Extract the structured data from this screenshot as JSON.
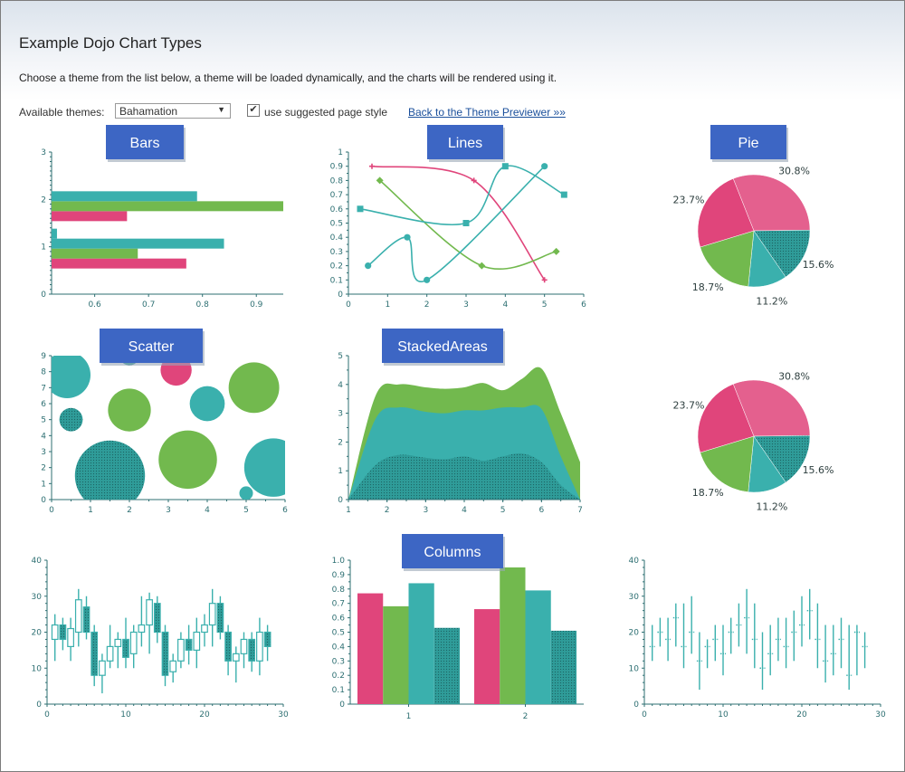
{
  "page": {
    "title": "Example Dojo Chart Types",
    "description": "Choose a theme from the list below, a theme will be loaded dynamically, and the charts will be rendered using it.",
    "themes_label": "Available themes:",
    "theme_selected": "Bahamation",
    "suggested_style_label": "use suggested page style",
    "suggested_style_checked": true,
    "back_link": "Back to the Theme Previewer »»"
  },
  "colors": {
    "pink": "#e0457b",
    "green": "#72b94e",
    "teal": "#3ab0ad",
    "teal_dark": "#2f9c99",
    "axis": "#2d6f72",
    "title_button": "#3d66c4"
  },
  "chart_data": [
    {
      "type": "bar",
      "title": "Bars",
      "orientation": "horizontal",
      "categories": [
        "1",
        "2"
      ],
      "series": [
        {
          "color": "pink",
          "values": [
            0.77,
            0.66
          ]
        },
        {
          "color": "green",
          "values": [
            0.68,
            0.95
          ]
        },
        {
          "color": "teal",
          "values": [
            0.84,
            0.79
          ]
        },
        {
          "color": "teal",
          "values": [
            0.53,
            0.51
          ]
        }
      ],
      "xlim": [
        0.52,
        0.95
      ],
      "ylim": [
        0,
        3
      ],
      "xticks": [
        "0.6",
        "0.7",
        "0.8",
        "0.9"
      ],
      "yticks": [
        "0",
        "1",
        "2",
        "3"
      ]
    },
    {
      "type": "line",
      "title": "Lines",
      "xlim": [
        0,
        6
      ],
      "ylim": [
        0,
        1
      ],
      "xticks": [
        "0",
        "1",
        "2",
        "3",
        "4",
        "5",
        "6"
      ],
      "yticks": [
        "0",
        "0.1",
        "0.2",
        "0.3",
        "0.4",
        "0.5",
        "0.6",
        "0.7",
        "0.8",
        "0.9",
        "1"
      ],
      "series": [
        {
          "color": "pink",
          "marker": "plus",
          "points": [
            [
              0.6,
              0.9
            ],
            [
              3.2,
              0.8
            ],
            [
              5.0,
              0.1
            ]
          ]
        },
        {
          "color": "green",
          "marker": "diamond",
          "points": [
            [
              0.8,
              0.8
            ],
            [
              3.4,
              0.2
            ],
            [
              5.3,
              0.3
            ]
          ]
        },
        {
          "color": "teal",
          "marker": "square",
          "points": [
            [
              0.3,
              0.6
            ],
            [
              3.0,
              0.5
            ],
            [
              4.0,
              0.9
            ],
            [
              5.5,
              0.7
            ]
          ]
        },
        {
          "color": "teal",
          "marker": "circle",
          "points": [
            [
              0.5,
              0.2
            ],
            [
              1.5,
              0.4
            ],
            [
              2.0,
              0.1
            ],
            [
              5.0,
              0.9
            ]
          ]
        }
      ]
    },
    {
      "type": "pie",
      "title": "Pie",
      "slices": [
        {
          "label": "30.8%",
          "value": 30.8,
          "color": "pink"
        },
        {
          "label": "15.6%",
          "value": 15.6,
          "color": "teal_dark"
        },
        {
          "label": "11.2%",
          "value": 11.2,
          "color": "teal"
        },
        {
          "label": "18.7%",
          "value": 18.7,
          "color": "green"
        },
        {
          "label": "23.7%",
          "value": 23.7,
          "color": "pink"
        }
      ]
    },
    {
      "type": "scatter",
      "title": "Scatter",
      "xlim": [
        0,
        6
      ],
      "ylim": [
        0,
        9
      ],
      "xticks": [
        "0",
        "1",
        "2",
        "3",
        "4",
        "5",
        "6"
      ],
      "yticks": [
        "0",
        "1",
        "2",
        "3",
        "4",
        "5",
        "6",
        "7",
        "8",
        "9"
      ],
      "points": [
        {
          "x": 0.4,
          "y": 7.8,
          "r": 1.2,
          "color": "teal"
        },
        {
          "x": 0.5,
          "y": 5.0,
          "r": 0.6,
          "color": "teal_dark"
        },
        {
          "x": 1.5,
          "y": 1.5,
          "r": 1.8,
          "color": "teal_dark"
        },
        {
          "x": 2.0,
          "y": 5.6,
          "r": 1.1,
          "color": "green"
        },
        {
          "x": 2.0,
          "y": 9.0,
          "r": 0.5,
          "color": "teal_dark"
        },
        {
          "x": 3.2,
          "y": 8.1,
          "r": 0.8,
          "color": "pink"
        },
        {
          "x": 3.5,
          "y": 2.5,
          "r": 1.5,
          "color": "green"
        },
        {
          "x": 4.0,
          "y": 6.0,
          "r": 0.9,
          "color": "teal"
        },
        {
          "x": 5.2,
          "y": 7.0,
          "r": 1.3,
          "color": "green"
        },
        {
          "x": 5.7,
          "y": 2.0,
          "r": 1.5,
          "color": "teal"
        },
        {
          "x": 5.0,
          "y": 0.4,
          "r": 0.35,
          "color": "teal"
        }
      ]
    },
    {
      "type": "area",
      "title": "StackedAreas",
      "xlim": [
        1,
        7
      ],
      "ylim": [
        0,
        5
      ],
      "xticks": [
        "1",
        "2",
        "3",
        "4",
        "5",
        "6",
        "7"
      ],
      "yticks": [
        "0",
        "1",
        "2",
        "3",
        "4",
        "5"
      ],
      "x": [
        1,
        1.7,
        2.3,
        3.0,
        3.5,
        4.0,
        4.5,
        5.0,
        5.5,
        6.0,
        6.5,
        7.0
      ],
      "series": [
        {
          "color": "teal_dark",
          "values": [
            0,
            1.2,
            1.55,
            1.45,
            1.4,
            1.5,
            1.35,
            1.5,
            1.6,
            1.3,
            0.5,
            0
          ]
        },
        {
          "color": "teal",
          "values": [
            0,
            1.6,
            1.65,
            1.6,
            1.6,
            1.6,
            1.75,
            1.7,
            1.6,
            1.85,
            1.0,
            0
          ]
        },
        {
          "color": "green",
          "values": [
            0,
            0.8,
            0.8,
            0.85,
            0.85,
            0.8,
            0.95,
            0.6,
            1.0,
            1.4,
            1.5,
            1.3
          ]
        }
      ]
    },
    {
      "type": "pie",
      "title": "",
      "slices": [
        {
          "label": "30.8%",
          "value": 30.8,
          "color": "pink"
        },
        {
          "label": "15.6%",
          "value": 15.6,
          "color": "teal_dark"
        },
        {
          "label": "11.2%",
          "value": 11.2,
          "color": "teal"
        },
        {
          "label": "18.7%",
          "value": 18.7,
          "color": "green"
        },
        {
          "label": "23.7%",
          "value": 23.7,
          "color": "pink"
        }
      ]
    },
    {
      "type": "candlestick",
      "title": "",
      "xlim": [
        0,
        30
      ],
      "ylim": [
        0,
        40
      ],
      "xticks": [
        "0",
        "10",
        "20",
        "30"
      ],
      "yticks": [
        "0",
        "10",
        "20",
        "30",
        "40"
      ],
      "candles": [
        [
          1,
          18,
          22,
          12,
          25
        ],
        [
          2,
          22,
          18,
          15,
          24
        ],
        [
          3,
          16,
          21,
          12,
          24
        ],
        [
          4,
          20,
          29,
          16,
          32
        ],
        [
          5,
          27,
          20,
          18,
          30
        ],
        [
          6,
          20,
          8,
          5,
          22
        ],
        [
          7,
          8,
          12,
          3,
          14
        ],
        [
          8,
          12,
          16,
          10,
          22
        ],
        [
          9,
          16,
          18,
          10,
          20
        ],
        [
          10,
          18,
          13,
          10,
          24
        ],
        [
          11,
          14,
          20,
          10,
          22
        ],
        [
          12,
          20,
          22,
          16,
          30
        ],
        [
          13,
          22,
          29,
          14,
          31
        ],
        [
          14,
          28,
          20,
          17,
          30
        ],
        [
          15,
          20,
          8,
          5,
          22
        ],
        [
          16,
          9,
          12,
          6,
          14
        ],
        [
          17,
          12,
          18,
          10,
          20
        ],
        [
          18,
          18,
          15,
          11,
          22
        ],
        [
          19,
          15,
          20,
          10,
          24
        ],
        [
          20,
          20,
          22,
          16,
          25
        ],
        [
          21,
          22,
          28,
          16,
          32
        ],
        [
          22,
          28,
          20,
          18,
          30
        ],
        [
          23,
          20,
          12,
          8,
          22
        ],
        [
          24,
          12,
          14,
          6,
          16
        ],
        [
          25,
          14,
          18,
          10,
          20
        ],
        [
          26,
          18,
          12,
          9,
          20
        ],
        [
          27,
          12,
          20,
          8,
          24
        ],
        [
          28,
          20,
          16,
          12,
          22
        ]
      ]
    },
    {
      "type": "bar",
      "title": "Columns",
      "orientation": "vertical",
      "categories": [
        "1",
        "2"
      ],
      "series": [
        {
          "color": "pink",
          "values": [
            0.77,
            0.66
          ]
        },
        {
          "color": "green",
          "values": [
            0.68,
            0.95
          ]
        },
        {
          "color": "teal",
          "values": [
            0.84,
            0.79
          ]
        },
        {
          "color": "teal_dark",
          "values": [
            0.53,
            0.51
          ]
        }
      ],
      "ylim": [
        0,
        1
      ],
      "yticks": [
        "0",
        "0.1",
        "0.2",
        "0.3",
        "0.4",
        "0.5",
        "0.6",
        "0.7",
        "0.8",
        "0.9",
        "1.0"
      ]
    },
    {
      "type": "ohlc",
      "title": "",
      "xlim": [
        0,
        30
      ],
      "ylim": [
        0,
        40
      ],
      "xticks": [
        "0",
        "10",
        "20",
        "30"
      ],
      "yticks": [
        "0",
        "10",
        "20",
        "30",
        "40"
      ],
      "sticks": [
        [
          1,
          16,
          12,
          22
        ],
        [
          2,
          20,
          16,
          24
        ],
        [
          3,
          18,
          12,
          24
        ],
        [
          4,
          24,
          16,
          28
        ],
        [
          5,
          16,
          10,
          28
        ],
        [
          6,
          20,
          14,
          30
        ],
        [
          7,
          12,
          4,
          20
        ],
        [
          8,
          16,
          10,
          18
        ],
        [
          9,
          18,
          12,
          22
        ],
        [
          10,
          14,
          8,
          22
        ],
        [
          11,
          20,
          14,
          24
        ],
        [
          12,
          22,
          16,
          28
        ],
        [
          13,
          24,
          14,
          32
        ],
        [
          14,
          18,
          10,
          28
        ],
        [
          15,
          10,
          4,
          20
        ],
        [
          16,
          14,
          8,
          22
        ],
        [
          17,
          18,
          12,
          24
        ],
        [
          18,
          16,
          10,
          24
        ],
        [
          19,
          20,
          12,
          26
        ],
        [
          20,
          22,
          16,
          30
        ],
        [
          21,
          26,
          18,
          32
        ],
        [
          22,
          18,
          10,
          28
        ],
        [
          23,
          12,
          6,
          22
        ],
        [
          24,
          14,
          8,
          22
        ],
        [
          25,
          18,
          10,
          24
        ],
        [
          26,
          8,
          4,
          22
        ],
        [
          27,
          20,
          8,
          22
        ],
        [
          28,
          16,
          10,
          20
        ]
      ]
    }
  ]
}
